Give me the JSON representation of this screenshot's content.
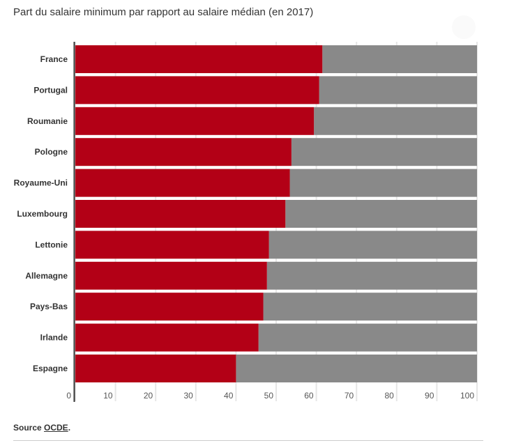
{
  "chart_data": {
    "type": "bar",
    "orientation": "horizontal",
    "stacked_to_100": true,
    "title": "Part du salaire minimum par rapport au salaire médian (en 2017)",
    "categories": [
      "France",
      "Portugal",
      "Roumanie",
      "Pologne",
      "Royaume-Uni",
      "Luxembourg",
      "Lettonie",
      "Allemagne",
      "Pays-Bas",
      "Irlande",
      "Espagne"
    ],
    "values": [
      61.5,
      60.7,
      59.4,
      53.8,
      53.4,
      52.3,
      48.2,
      47.7,
      46.8,
      45.6,
      40.0
    ],
    "xlim": [
      0,
      100
    ],
    "xticks": [
      0,
      10,
      20,
      30,
      40,
      50,
      60,
      70,
      80,
      90,
      100
    ],
    "grid": true,
    "colors": {
      "value": "#b30016",
      "remainder": "#898989"
    }
  },
  "source": {
    "prefix": "Source ",
    "link": "OCDE",
    "suffix": "."
  }
}
